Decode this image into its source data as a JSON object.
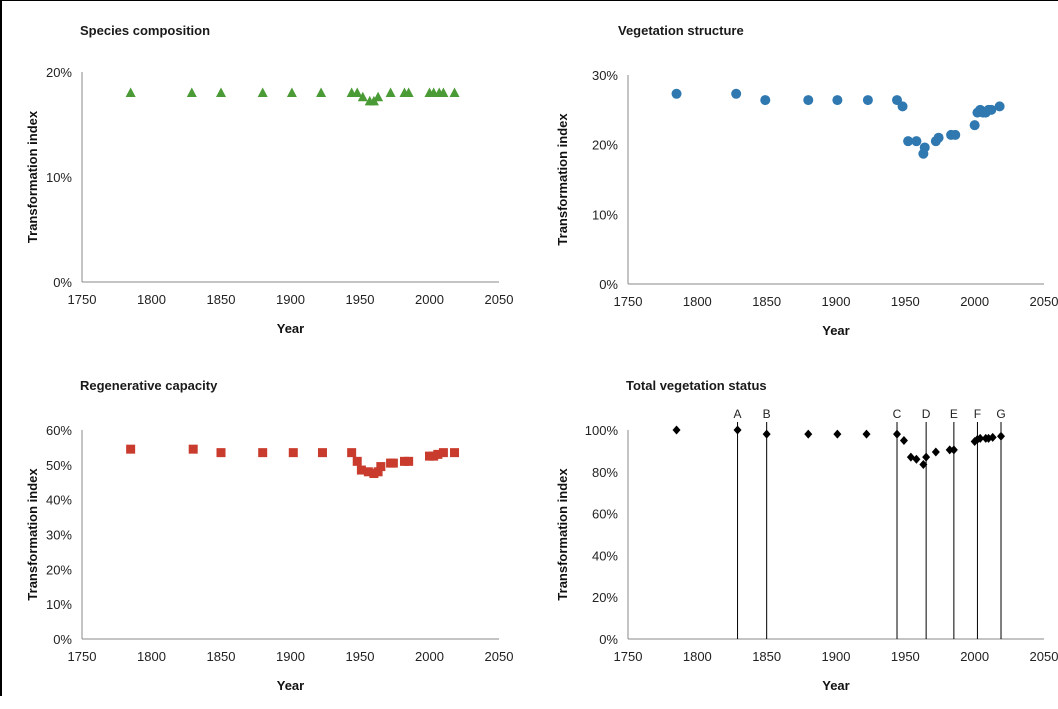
{
  "chart_data": [
    {
      "type": "scatter",
      "title": "Species composition",
      "xlabel": "Year",
      "ylabel": "Transformation index",
      "xlim": [
        1750,
        2050
      ],
      "ylim": [
        0,
        20
      ],
      "xticks": [
        "1750",
        "1800",
        "1850",
        "1900",
        "1950",
        "2000",
        "2050"
      ],
      "yticks": [
        "0%",
        "10%",
        "20%"
      ],
      "marker": "triangle",
      "color": "#4a9a35",
      "grid": false,
      "x": [
        1785,
        1829,
        1850,
        1880,
        1901,
        1922,
        1944,
        1948,
        1952,
        1957,
        1960,
        1963,
        1972,
        1982,
        1985,
        2000,
        2003,
        2007,
        2010,
        2018
      ],
      "y": [
        18,
        18,
        18,
        18,
        18,
        18,
        18,
        18,
        17.6,
        17.2,
        17.2,
        17.6,
        18,
        18,
        18,
        18,
        18,
        18,
        18,
        18
      ]
    },
    {
      "type": "scatter",
      "title": "Vegetation structure",
      "xlabel": "Year",
      "ylabel": "Transformation index",
      "xlim": [
        1750,
        2050
      ],
      "ylim": [
        0,
        30
      ],
      "xticks": [
        "1750",
        "1800",
        "1850",
        "1900",
        "1950",
        "2000",
        "2050"
      ],
      "yticks": [
        "0%",
        "10%",
        "20%",
        "30%"
      ],
      "marker": "circle",
      "color": "#2f78b0",
      "grid": false,
      "x": [
        1785,
        1828,
        1849,
        1880,
        1901,
        1923,
        1944,
        1948,
        1952,
        1958,
        1963,
        1964,
        1972,
        1974,
        1983,
        1986,
        2000,
        2002,
        2004,
        2006,
        2008,
        2010,
        2012,
        2018
      ],
      "y": [
        27.3,
        27.3,
        26.4,
        26.4,
        26.4,
        26.4,
        26.4,
        25.5,
        20.5,
        20.5,
        18.7,
        19.6,
        20.5,
        21,
        21.4,
        21.4,
        22.8,
        24.6,
        25,
        24.6,
        24.6,
        25,
        25,
        25.5
      ]
    },
    {
      "type": "scatter",
      "title": "Regenerative capacity",
      "xlabel": "Year",
      "ylabel": "Transformation index",
      "xlim": [
        1750,
        2050
      ],
      "ylim": [
        0,
        60
      ],
      "xticks": [
        "1750",
        "1800",
        "1850",
        "1900",
        "1950",
        "2000",
        "2050"
      ],
      "yticks": [
        "0%",
        "10%",
        "20%",
        "30%",
        "40%",
        "50%",
        "60%"
      ],
      "marker": "square",
      "color": "#c83b2d",
      "grid": false,
      "x": [
        1785,
        1830,
        1850,
        1880,
        1902,
        1923,
        1944,
        1948,
        1951,
        1956,
        1960,
        1963,
        1965,
        1972,
        1974,
        1982,
        1985,
        2000,
        2003,
        2006,
        2010,
        2018
      ],
      "y": [
        54.5,
        54.5,
        53.5,
        53.5,
        53.5,
        53.5,
        53.5,
        51,
        48.5,
        48,
        47.5,
        48,
        49.5,
        50.5,
        50.5,
        51,
        51,
        52.5,
        52.5,
        53,
        53.5,
        53.5
      ]
    },
    {
      "type": "scatter",
      "title": "Total vegetation status",
      "xlabel": "Year",
      "ylabel": "Transformation index",
      "xlim": [
        1750,
        2050
      ],
      "ylim": [
        0,
        100
      ],
      "xticks": [
        "1750",
        "1800",
        "1850",
        "1900",
        "1950",
        "2000",
        "2050"
      ],
      "yticks": [
        "0%",
        "20%",
        "40%",
        "60%",
        "80%",
        "100%"
      ],
      "marker": "diamond",
      "color": "#000000",
      "grid": false,
      "x": [
        1785,
        1829,
        1850,
        1880,
        1901,
        1922,
        1944,
        1949,
        1954,
        1958,
        1963,
        1965,
        1972,
        1982,
        1985,
        2000,
        2002,
        2004,
        2008,
        2010,
        2013,
        2019
      ],
      "y": [
        100,
        100,
        98,
        98,
        98,
        98,
        98,
        95,
        87,
        86,
        83.5,
        87,
        89.5,
        90.5,
        90.5,
        94.5,
        95.5,
        96,
        96,
        96,
        96.5,
        97
      ],
      "annotations": [
        {
          "label": "A",
          "x": 1829
        },
        {
          "label": "B",
          "x": 1850
        },
        {
          "label": "C",
          "x": 1944
        },
        {
          "label": "D",
          "x": 1965
        },
        {
          "label": "E",
          "x": 1985
        },
        {
          "label": "F",
          "x": 2002
        },
        {
          "label": "G",
          "x": 2019
        }
      ]
    }
  ]
}
